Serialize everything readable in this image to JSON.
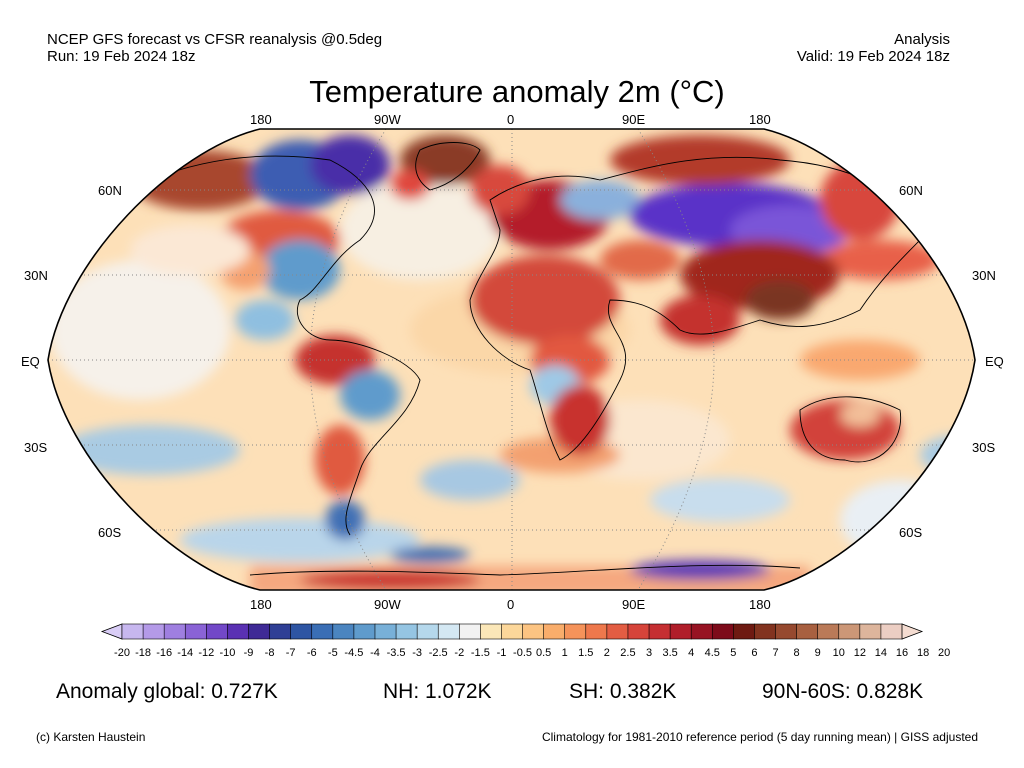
{
  "header": {
    "left_line1": "NCEP GFS forecast vs CFSR reanalysis @0.5deg",
    "left_line2": "Run: 19 Feb 2024 18z",
    "right_line1": "Analysis",
    "right_line2": "Valid: 19 Feb 2024 18z"
  },
  "title": "Temperature anomaly 2m (°C)",
  "map": {
    "projection": "Robinson",
    "lon_labels": [
      "180",
      "90W",
      "0",
      "90E",
      "180"
    ],
    "lat_labels_left": [
      "60N",
      "30N",
      "EQ",
      "30S",
      "60S"
    ],
    "lat_labels_right": [
      "60N",
      "30N",
      "EQ",
      "30S",
      "60S"
    ],
    "ocean_base_color": "#fde0b8"
  },
  "colorbar": {
    "ticks": [
      "-20",
      "-18",
      "-16",
      "-14",
      "-12",
      "-10",
      "-9",
      "-8",
      "-7",
      "-6",
      "-5",
      "-4.5",
      "-4",
      "-3.5",
      "-3",
      "-2.5",
      "-2",
      "-1.5",
      "-1",
      "-0.5",
      "0.5",
      "1",
      "1.5",
      "2",
      "2.5",
      "3",
      "3.5",
      "4",
      "4.5",
      "5",
      "6",
      "7",
      "8",
      "9",
      "10",
      "12",
      "14",
      "16",
      "18",
      "20"
    ],
    "colors": [
      "#c7b7ef",
      "#b49ae8",
      "#9f7fe0",
      "#8a63d6",
      "#7248c8",
      "#5a31b3",
      "#3f2a96",
      "#2f3f95",
      "#2e55a3",
      "#3a6eb5",
      "#4b85c0",
      "#5f9bcc",
      "#78b0d8",
      "#95c5e3",
      "#b5d8ec",
      "#d4e8f3",
      "#f2f2f2",
      "#fbe7b8",
      "#fcd79a",
      "#fcc482",
      "#f9ad6b",
      "#f5935a",
      "#ee784c",
      "#e35d43",
      "#d6443a",
      "#c52f32",
      "#b01e2a",
      "#971323",
      "#7d0b1a",
      "#6e1a12",
      "#82331f",
      "#96492f",
      "#a86040",
      "#ba7a58",
      "#cc9777",
      "#ddb59c",
      "#eccec3"
    ],
    "left_arrow_color": "#d9cdf6",
    "right_arrow_color": "#f4dcd1"
  },
  "stats": {
    "global": "Anomaly global: 0.727K",
    "nh": "NH: 1.072K",
    "sh": "SH: 0.382K",
    "arctic": "90N-60S: 0.828K"
  },
  "footer": {
    "left": "(c) Karsten Haustein",
    "right": "Climatology for 1981-2010 reference period (5 day running mean) | GISS adjusted"
  }
}
